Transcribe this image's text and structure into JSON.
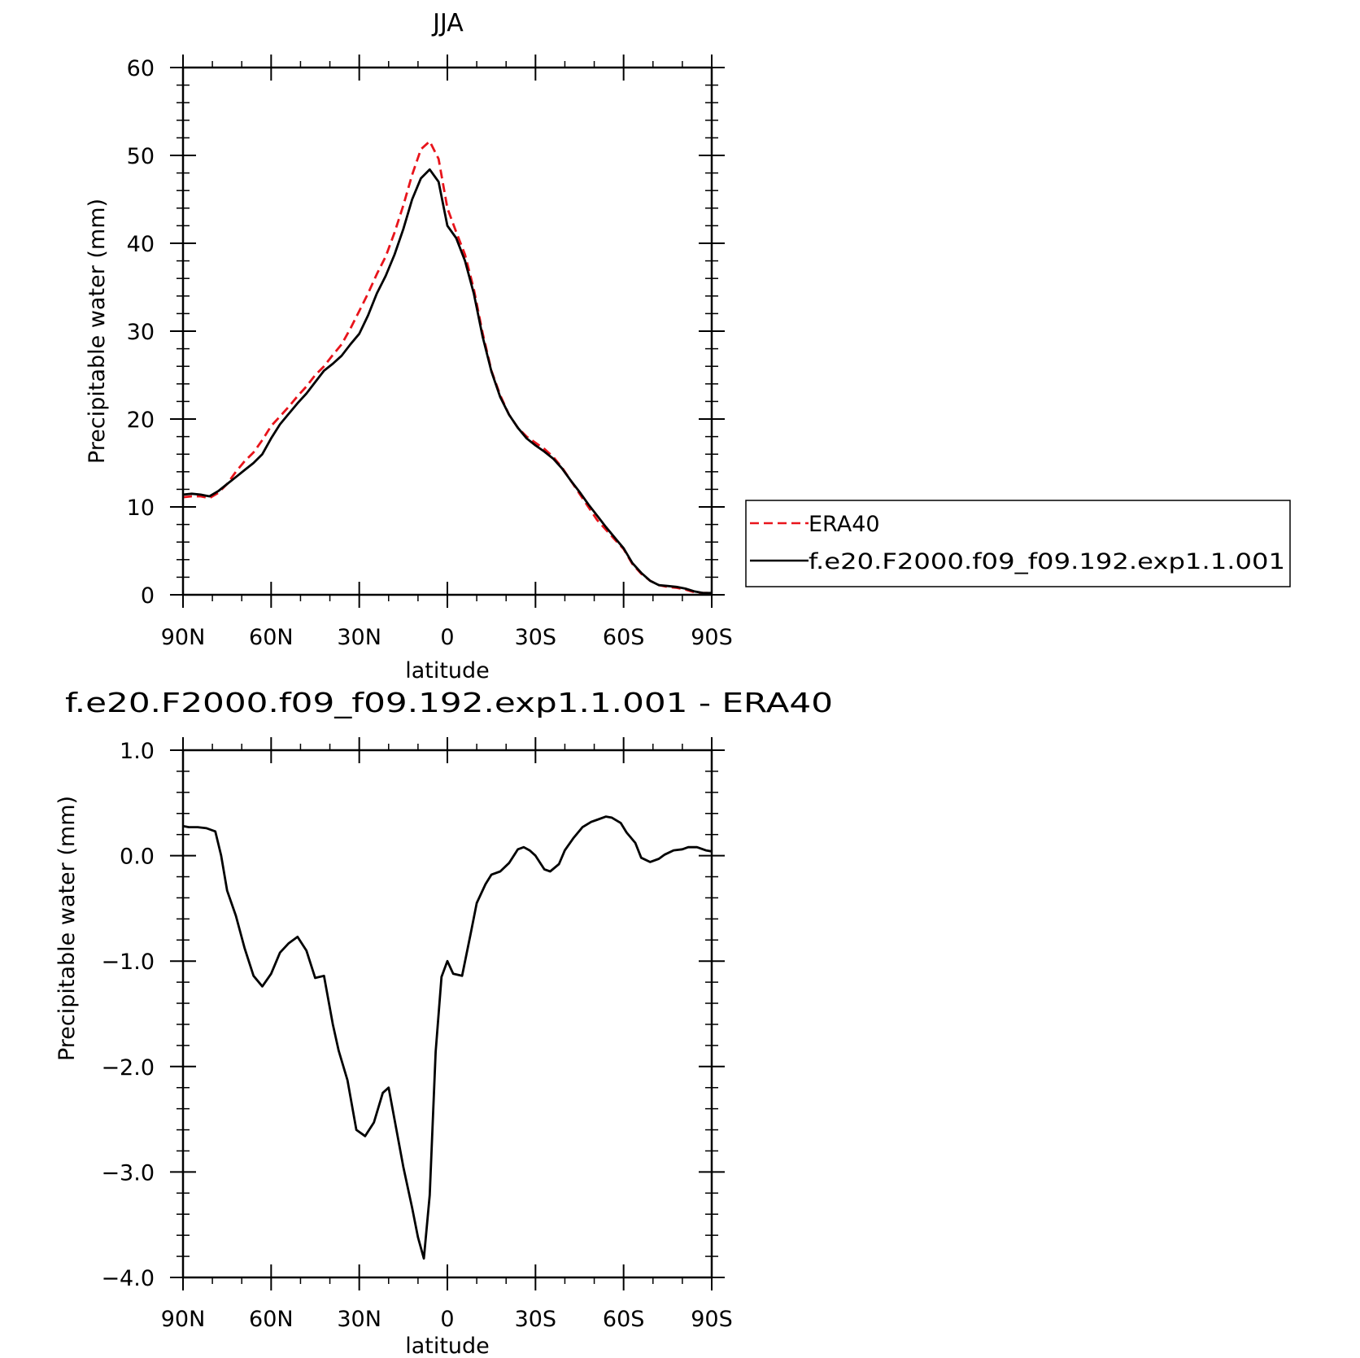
{
  "chart_data": [
    {
      "type": "line",
      "title": "JJA",
      "xlabel": "latitude",
      "ylabel": "Precipitable water (mm)",
      "xlim": [
        90,
        -90
      ],
      "ylim": [
        0,
        60
      ],
      "xticks": [
        90,
        60,
        30,
        0,
        -30,
        -60,
        -90
      ],
      "xticklabels": [
        "90N",
        "60N",
        "30N",
        "0",
        "30S",
        "60S",
        "90S"
      ],
      "yticks": [
        0,
        10,
        20,
        30,
        40,
        50,
        60
      ],
      "yticklabels": [
        "0",
        "10",
        "20",
        "30",
        "40",
        "50",
        "60"
      ],
      "legend": {
        "placement": "right",
        "entries": [
          "ERA40",
          "f.e20.F2000.f09_f09.192.exp1.1.001"
        ]
      },
      "series": [
        {
          "name": "ERA40",
          "color": "#e8141b",
          "dash": "dashed",
          "x": [
            90,
            87,
            84,
            81,
            78,
            75,
            72,
            69,
            66,
            63,
            60,
            57,
            54,
            51,
            48,
            45,
            42,
            39,
            36,
            33,
            30,
            27,
            24,
            21,
            18,
            15,
            12,
            9,
            6,
            3,
            0,
            -3,
            -6,
            -9,
            -12,
            -15,
            -18,
            -21,
            -24,
            -27,
            -30,
            -33,
            -36,
            -39,
            -42,
            -45,
            -48,
            -51,
            -54,
            -57,
            -60,
            -63,
            -66,
            -69,
            -72,
            -75,
            -78,
            -81,
            -84,
            -87,
            -90
          ],
          "y": [
            11.1,
            11.2,
            11.2,
            11.0,
            11.6,
            12.6,
            14.0,
            15.2,
            16.2,
            17.6,
            19.2,
            20.3,
            21.4,
            22.6,
            23.7,
            25.0,
            26.0,
            27.3,
            28.5,
            30.3,
            32.3,
            34.3,
            36.5,
            38.5,
            41.2,
            44.3,
            47.8,
            50.7,
            51.6,
            49.6,
            44.0,
            41.3,
            38.7,
            34.8,
            29.8,
            25.5,
            22.7,
            20.5,
            19.0,
            18.0,
            17.3,
            16.6,
            15.7,
            14.5,
            13.0,
            11.5,
            10.0,
            8.5,
            7.4,
            6.3,
            5.2,
            3.5,
            2.4,
            1.6,
            1.1,
            0.9,
            0.8,
            0.6,
            0.3,
            0.2,
            0.2
          ]
        },
        {
          "name": "f.e20.F2000.f09_f09.192.exp1.1.001",
          "color": "#000000",
          "dash": "solid",
          "x": [
            90,
            87,
            84,
            81,
            78,
            75,
            72,
            69,
            66,
            63,
            60,
            57,
            54,
            51,
            48,
            45,
            42,
            39,
            36,
            33,
            30,
            27,
            24,
            21,
            18,
            15,
            12,
            9,
            6,
            3,
            0,
            -3,
            -6,
            -9,
            -12,
            -15,
            -18,
            -21,
            -24,
            -27,
            -30,
            -33,
            -36,
            -39,
            -42,
            -45,
            -48,
            -51,
            -54,
            -57,
            -60,
            -63,
            -66,
            -69,
            -72,
            -75,
            -78,
            -81,
            -84,
            -87,
            -90
          ],
          "y": [
            11.4,
            11.5,
            11.4,
            11.2,
            11.8,
            12.6,
            13.4,
            14.2,
            15.0,
            16.0,
            17.8,
            19.4,
            20.6,
            21.8,
            22.9,
            24.2,
            25.5,
            26.3,
            27.2,
            28.5,
            29.7,
            31.8,
            34.3,
            36.3,
            38.7,
            41.6,
            45.0,
            47.4,
            48.4,
            47.0,
            42.0,
            40.6,
            38.0,
            34.3,
            29.4,
            25.4,
            22.5,
            20.5,
            19.0,
            17.8,
            17.0,
            16.3,
            15.5,
            14.4,
            13.0,
            11.7,
            10.3,
            9.0,
            7.7,
            6.5,
            5.3,
            3.6,
            2.5,
            1.6,
            1.1,
            1.0,
            0.9,
            0.7,
            0.4,
            0.2,
            0.2
          ]
        }
      ]
    },
    {
      "type": "line",
      "title": "f.e20.F2000.f09_f09.192.exp1.1.001 - ERA40",
      "xlabel": "latitude",
      "ylabel": "Precipitable water (mm)",
      "xlim": [
        90,
        -90
      ],
      "ylim": [
        -4.0,
        1.0
      ],
      "xticks": [
        90,
        60,
        30,
        0,
        -30,
        -60,
        -90
      ],
      "xticklabels": [
        "90N",
        "60N",
        "30N",
        "0",
        "30S",
        "60S",
        "90S"
      ],
      "yticks": [
        -4.0,
        -3.0,
        -2.0,
        -1.0,
        0.0,
        1.0
      ],
      "yticklabels": [
        "−4.0",
        "−3.0",
        "−2.0",
        "−1.0",
        "0.0",
        "1.0"
      ],
      "series": [
        {
          "color": "#000000",
          "dash": "solid",
          "x": [
            90,
            88,
            85,
            82,
            79,
            77,
            75,
            72,
            69,
            66,
            63,
            60,
            57,
            54,
            51,
            48,
            45,
            42,
            39,
            37,
            34,
            31,
            28,
            25,
            22,
            20,
            18,
            15,
            12,
            10,
            8,
            6,
            4,
            2,
            0,
            -2,
            -5,
            -8,
            -10,
            -13,
            -15,
            -18,
            -21,
            -24,
            -26,
            -28,
            -30,
            -33,
            -35,
            -38,
            -40,
            -43,
            -46,
            -49,
            -51,
            -54,
            -56,
            -59,
            -61,
            -64,
            -66,
            -69,
            -72,
            -74,
            -77,
            -80,
            -82,
            -85,
            -88,
            -90
          ],
          "y": [
            0.28,
            0.27,
            0.27,
            0.26,
            0.23,
            0.0,
            -0.33,
            -0.57,
            -0.88,
            -1.14,
            -1.24,
            -1.12,
            -0.92,
            -0.83,
            -0.77,
            -0.9,
            -1.16,
            -1.14,
            -1.6,
            -1.85,
            -2.13,
            -2.6,
            -2.66,
            -2.53,
            -2.25,
            -2.2,
            -2.5,
            -2.95,
            -3.34,
            -3.62,
            -3.82,
            -3.22,
            -1.86,
            -1.15,
            -1.0,
            -1.12,
            -1.14,
            -0.73,
            -0.45,
            -0.27,
            -0.18,
            -0.15,
            -0.07,
            0.06,
            0.08,
            0.05,
            0.0,
            -0.13,
            -0.15,
            -0.08,
            0.05,
            0.17,
            0.27,
            0.32,
            0.34,
            0.37,
            0.36,
            0.31,
            0.22,
            0.12,
            -0.02,
            -0.06,
            -0.03,
            0.01,
            0.05,
            0.06,
            0.08,
            0.08,
            0.05,
            0.04
          ]
        }
      ]
    }
  ]
}
